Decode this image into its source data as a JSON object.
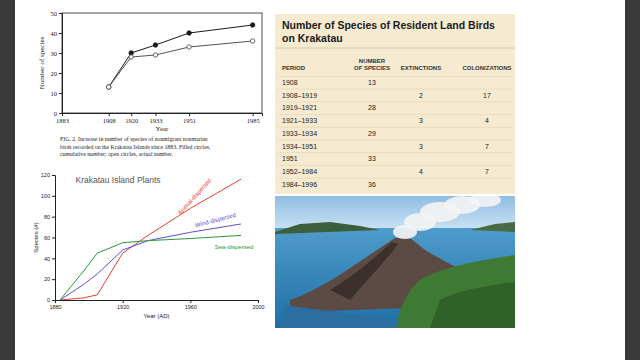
{
  "chart_data": [
    {
      "type": "line",
      "xlabel": "Year",
      "ylabel": "Number of species",
      "caption": [
        "FIG. 2.  Increase in number of species of nonmigrant nonmarine",
        "birds recorded on the Krakatau Islands since 1883. Filled circles,",
        "cumulative number; open circles, actual number."
      ],
      "x": [
        1908,
        1920,
        1933,
        1951,
        1985
      ],
      "series": [
        {
          "color": "#1a1a1a",
          "marker": "filled",
          "values": [
            13,
            30,
            34,
            40,
            44
          ]
        },
        {
          "color": "#555555",
          "marker": "open",
          "values": [
            13,
            28,
            29,
            33,
            36
          ]
        }
      ],
      "xlim": [
        1883,
        1990
      ],
      "xticks": [
        1883,
        1908,
        1920,
        1933,
        1951,
        1985
      ],
      "ylim": [
        0,
        50
      ],
      "yticks": [
        0,
        10,
        20,
        30,
        40,
        50
      ]
    },
    {
      "type": "line",
      "title": "Krakatau Island Plants",
      "xlabel": "Year (AD)",
      "ylabel": "Species (#)",
      "x": [
        1883,
        1897,
        1905,
        1920,
        1935,
        1960,
        1990
      ],
      "series": [
        {
          "name": "Animal-dispersed",
          "color": "#e8412c",
          "values": [
            0,
            2,
            5,
            45,
            62,
            88,
            116
          ]
        },
        {
          "name": "Wind-dispersed",
          "color": "#5b4fd6",
          "values": [
            0,
            15,
            25,
            48,
            57,
            65,
            73
          ]
        },
        {
          "name": "Sea-dispersed",
          "color": "#2a9a3a",
          "values": [
            0,
            28,
            45,
            55,
            57,
            59,
            62
          ]
        }
      ],
      "xlim": [
        1880,
        2000
      ],
      "xticks": [
        1880,
        1920,
        1960,
        2000
      ],
      "ylim": [
        0,
        120
      ],
      "yticks": [
        0,
        20,
        40,
        60,
        80,
        100,
        120
      ]
    }
  ],
  "table": {
    "title": [
      "Number of Species of Resident Land Birds",
      "on Krakatau"
    ],
    "columns": [
      [
        "PERIOD"
      ],
      [
        "NUMBER",
        "OF SPECIES"
      ],
      [
        "EXTINCTIONS"
      ],
      [
        "COLONIZATIONS"
      ]
    ],
    "rows": [
      [
        "1908",
        13,
        null,
        null
      ],
      [
        "1908–1919",
        null,
        2,
        17
      ],
      [
        "1919–1921",
        28,
        null,
        null
      ],
      [
        "1921–1933",
        null,
        3,
        4
      ],
      [
        "1933–1934",
        29,
        null,
        null
      ],
      [
        "1934–1951",
        null,
        3,
        7
      ],
      [
        "1951",
        33,
        null,
        null
      ],
      [
        "1952–1984",
        null,
        4,
        7
      ],
      [
        "1984–1996",
        36,
        null,
        null
      ]
    ]
  }
}
